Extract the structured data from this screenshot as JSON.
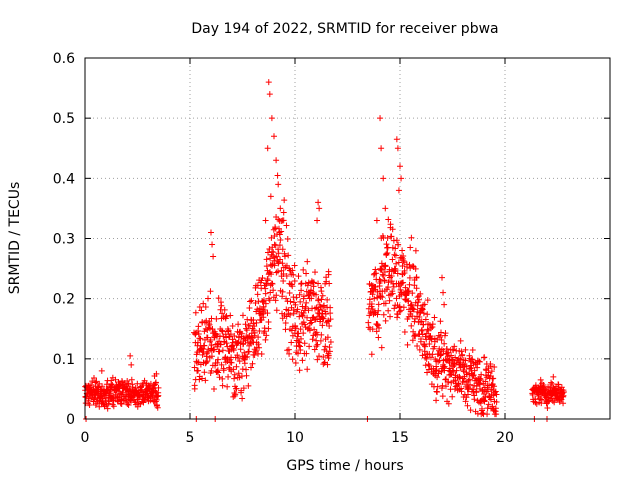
{
  "chart_data": {
    "type": "scatter",
    "title": "Day 194 of 2022, SRMTID for receiver pbwa",
    "xlabel": "GPS time / hours",
    "ylabel": "SRMTID / TECUs",
    "xlim": [
      0,
      25
    ],
    "ylim": [
      0,
      0.6
    ],
    "xticks": [
      0,
      5,
      10,
      15,
      20
    ],
    "xtick_labels": [
      "0",
      "5",
      "10",
      "15",
      "20"
    ],
    "yticks": [
      0,
      0.1,
      0.2,
      0.3,
      0.4,
      0.5,
      0.6
    ],
    "ytick_labels": [
      "0",
      "0.1",
      "0.2",
      "0.3",
      "0.4",
      "0.5",
      "0.6"
    ],
    "grid": true,
    "marker": "plus",
    "color": "#ff0000",
    "series": [
      {
        "name": "pbwa",
        "segments": [
          {
            "x_start": 0.0,
            "x_end": 3.5,
            "base": [
              0.04,
              0.045,
              0.04,
              0.045,
              0.045,
              0.04,
              0.045,
              0.04
            ],
            "spread": 0.03,
            "spikes": [
              [
                0.05,
                0.0
              ],
              [
                2.15,
                0.105
              ],
              [
                2.2,
                0.09
              ],
              [
                0.8,
                0.08
              ],
              [
                3.4,
                0.075
              ]
            ]
          },
          {
            "x_start": 5.2,
            "x_end": 11.7,
            "base": [
              0.1,
              0.13,
              0.12,
              0.13,
              0.1,
              0.12,
              0.15,
              0.22,
              0.3,
              0.2,
              0.15,
              0.18,
              0.16,
              0.14
            ],
            "spread": 0.08,
            "spikes": [
              [
                5.3,
                0.0
              ],
              [
                6.0,
                0.31
              ],
              [
                6.05,
                0.29
              ],
              [
                6.1,
                0.27
              ],
              [
                6.2,
                0.0
              ],
              [
                8.75,
                0.56
              ],
              [
                8.8,
                0.54
              ],
              [
                8.9,
                0.5
              ],
              [
                9.0,
                0.47
              ],
              [
                9.1,
                0.43
              ],
              [
                9.2,
                0.39
              ],
              [
                8.7,
                0.45
              ],
              [
                8.85,
                0.37
              ],
              [
                9.3,
                0.35
              ],
              [
                9.4,
                0.33
              ],
              [
                8.6,
                0.33
              ],
              [
                11.1,
                0.36
              ],
              [
                11.15,
                0.35
              ],
              [
                11.05,
                0.33
              ],
              [
                11.6,
                0.24
              ],
              [
                11.6,
                0.245
              ]
            ]
          },
          {
            "x_start": 13.5,
            "x_end": 19.6,
            "base": [
              0.18,
              0.2,
              0.26,
              0.23,
              0.22,
              0.18,
              0.13,
              0.1,
              0.09,
              0.08,
              0.07,
              0.06,
              0.05,
              0.04
            ],
            "spread": 0.07,
            "spikes": [
              [
                13.45,
                0.0
              ],
              [
                14.05,
                0.5
              ],
              [
                14.1,
                0.45
              ],
              [
                14.2,
                0.4
              ],
              [
                14.3,
                0.35
              ],
              [
                14.85,
                0.465
              ],
              [
                14.9,
                0.45
              ],
              [
                15.0,
                0.42
              ],
              [
                15.05,
                0.4
              ],
              [
                14.95,
                0.38
              ],
              [
                15.1,
                0.28
              ],
              [
                13.9,
                0.33
              ],
              [
                17.0,
                0.235
              ],
              [
                17.05,
                0.21
              ],
              [
                17.1,
                0.19
              ],
              [
                18.8,
                0.095
              ]
            ]
          },
          {
            "x_start": 21.3,
            "x_end": 22.8,
            "base": [
              0.04,
              0.045,
              0.04,
              0.045,
              0.04
            ],
            "spread": 0.025,
            "spikes": [
              [
                21.4,
                0.0
              ],
              [
                22.0,
                0.0
              ],
              [
                22.3,
                0.07
              ],
              [
                21.7,
                0.065
              ]
            ]
          }
        ]
      }
    ]
  }
}
